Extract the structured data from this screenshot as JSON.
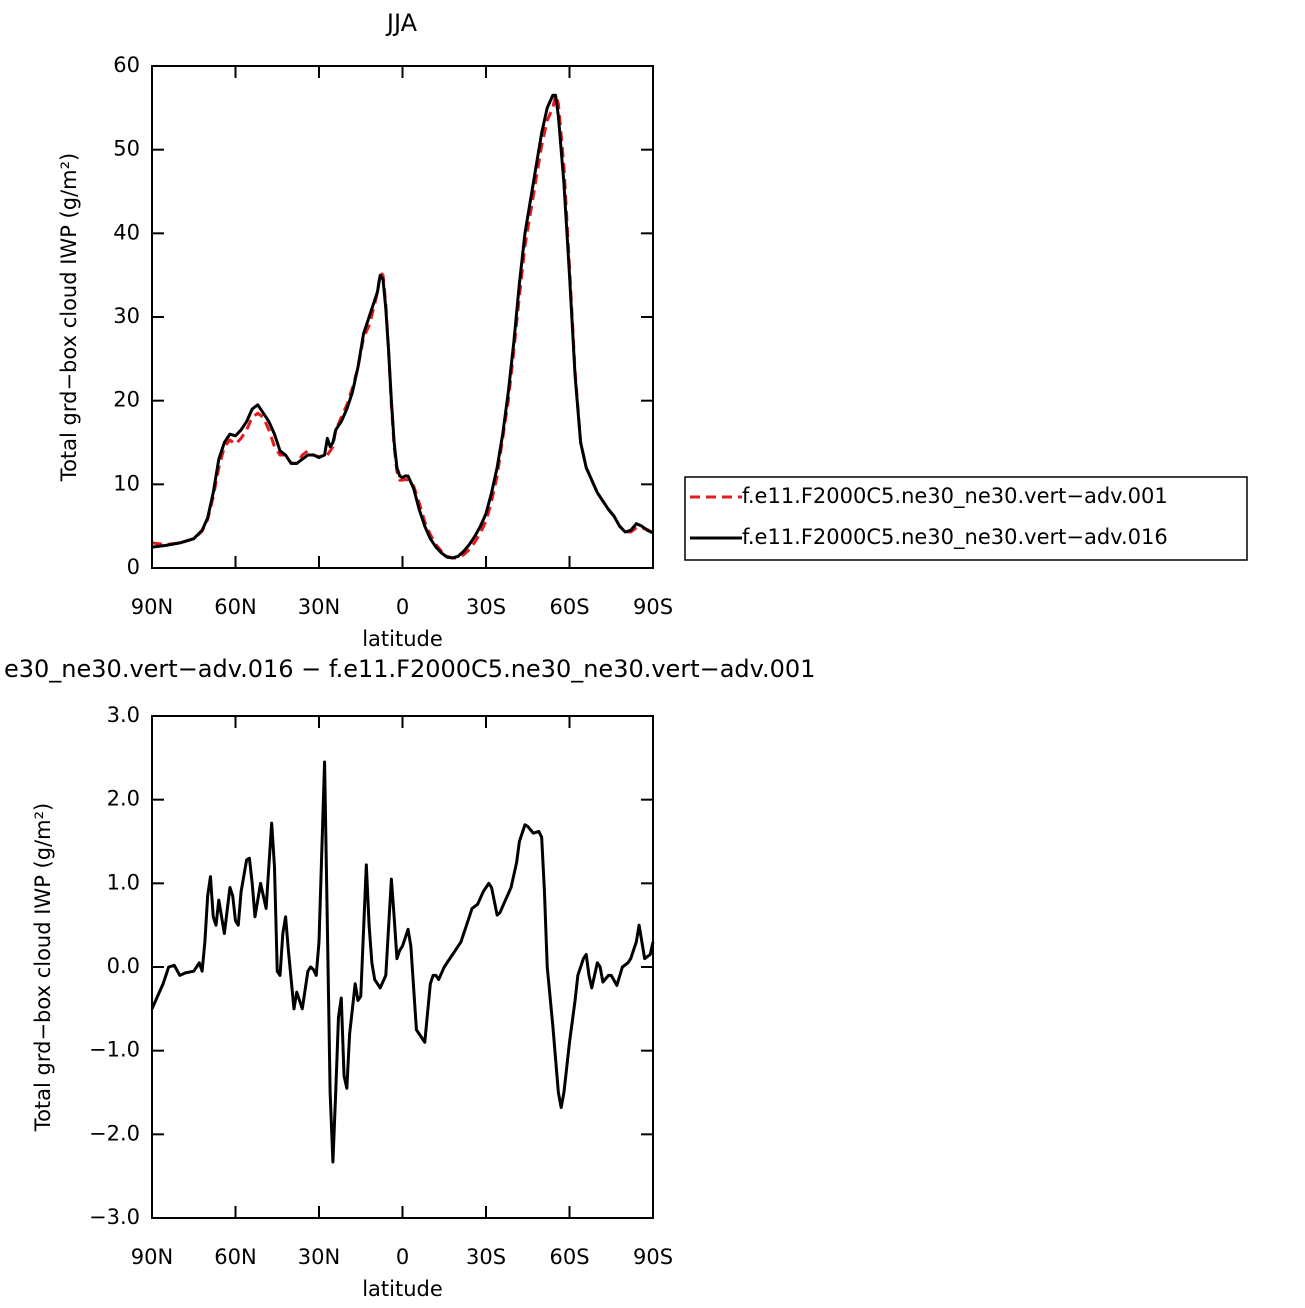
{
  "chart_data": [
    {
      "type": "line",
      "title": "JJA",
      "xlabel": "latitude",
      "ylabel": "Total grd−box cloud IWP (g/m²)",
      "x": [
        90,
        85,
        80,
        75,
        72,
        70,
        68,
        66,
        64,
        62,
        60,
        58,
        56,
        54,
        52,
        50,
        48,
        46,
        44,
        42,
        40,
        38,
        36,
        34,
        32,
        30,
        28,
        27,
        26,
        25,
        24,
        22,
        20,
        18,
        16,
        14,
        12,
        10,
        9,
        8,
        7,
        6,
        5,
        4,
        3,
        2,
        1,
        0,
        -1,
        -2,
        -4,
        -6,
        -8,
        -10,
        -12,
        -14,
        -16,
        -18,
        -20,
        -22,
        -24,
        -26,
        -28,
        -30,
        -32,
        -34,
        -36,
        -38,
        -40,
        -42,
        -44,
        -46,
        -48,
        -50,
        -52,
        -54,
        -55,
        -56,
        -58,
        -60,
        -62,
        -64,
        -66,
        -68,
        -70,
        -72,
        -74,
        -76,
        -78,
        -80,
        -82,
        -84,
        -86,
        -88,
        -90
      ],
      "series": [
        {
          "name": "f.e11.F2000C5.ne30_ne30.vert−adv.001",
          "color": "#e41a1c",
          "style": "dashed",
          "values": [
            3.0,
            2.8,
            3.0,
            3.5,
            4.4,
            5.8,
            8.5,
            12,
            14.5,
            15.3,
            14.8,
            15.5,
            16.5,
            18,
            18.5,
            18,
            16.5,
            14.5,
            13.5,
            13.5,
            12.5,
            12.5,
            13.5,
            14,
            13.5,
            13.3,
            13.5,
            13.5,
            14,
            14.5,
            16.5,
            18,
            19.5,
            21.5,
            24,
            27.5,
            29,
            31.5,
            33,
            35.3,
            35,
            31.5,
            26,
            19.5,
            14.5,
            11.5,
            10.5,
            10.5,
            10.6,
            10.5,
            9.8,
            7.8,
            5.5,
            4,
            2.8,
            2,
            1.4,
            1.2,
            1.2,
            1.6,
            2.2,
            3.1,
            4.2,
            5.6,
            8,
            11,
            15.5,
            20,
            26,
            32.5,
            38.5,
            42.5,
            46.5,
            50.5,
            53.5,
            55,
            56.5,
            55.5,
            48,
            36,
            23.5,
            15,
            12,
            10.5,
            9,
            8,
            7,
            6.2,
            5,
            4.3,
            4.3,
            4.8,
            4.8,
            4.6,
            4.2
          ]
        },
        {
          "name": "f.e11.F2000C5.ne30_ne30.vert−adv.016",
          "color": "#000000",
          "style": "solid",
          "values": [
            2.5,
            2.7,
            3.0,
            3.5,
            4.5,
            6,
            9,
            13,
            15,
            16,
            15.8,
            16.5,
            17.5,
            19,
            19.5,
            18.5,
            17.5,
            16,
            14,
            13.5,
            12.5,
            12.5,
            13,
            13.5,
            13.5,
            13.2,
            13.5,
            15.5,
            14.5,
            15,
            16.5,
            17.5,
            19,
            21,
            24,
            28,
            30,
            32,
            33,
            35,
            34.5,
            31,
            26,
            20,
            15,
            12,
            11,
            10.8,
            11,
            11,
            9.5,
            7,
            5,
            3.5,
            2.5,
            1.8,
            1.3,
            1.2,
            1.4,
            2,
            2.8,
            3.8,
            5,
            6.5,
            9,
            12,
            16,
            21,
            27,
            34,
            40,
            44,
            48,
            52,
            55,
            56.5,
            56.5,
            54,
            46,
            35,
            23,
            15,
            12,
            10.5,
            9,
            8,
            7,
            6.2,
            5,
            4.3,
            4.5,
            5.3,
            5,
            4.5,
            4.2
          ]
        }
      ],
      "xlim": [
        90,
        -90
      ],
      "xticks": [
        {
          "value": 90,
          "label": "90N"
        },
        {
          "value": 60,
          "label": "60N"
        },
        {
          "value": 30,
          "label": "30N"
        },
        0,
        {
          "value": -30,
          "label": "30S"
        },
        {
          "value": -60,
          "label": "60S"
        },
        {
          "value": -90,
          "label": "90S"
        }
      ],
      "ylim": [
        0,
        60
      ],
      "yticks": [
        0,
        10,
        20,
        30,
        40,
        50,
        60
      ],
      "legend": "right"
    },
    {
      "type": "line",
      "title": "e30_ne30.vert−adv.016 − f.e11.F2000C5.ne30_ne30.vert−adv.001",
      "xlabel": "latitude",
      "ylabel": "Total grd−box cloud IWP (g/m²)",
      "x": [
        90,
        88,
        86,
        84,
        82,
        80,
        78,
        75,
        73,
        72,
        71,
        70,
        69,
        68,
        67,
        66,
        64,
        62,
        61,
        60,
        59,
        58,
        56,
        55,
        54,
        53,
        51,
        49,
        47,
        46,
        45,
        44,
        43,
        42,
        41,
        39,
        38,
        36,
        34,
        33,
        32,
        31,
        30,
        28,
        27,
        26,
        25,
        24,
        23,
        22,
        21,
        20,
        19,
        17,
        16,
        15,
        13,
        12,
        11,
        10,
        8,
        6,
        4,
        3,
        2,
        1,
        0,
        -2,
        -3,
        -5,
        -6,
        -7,
        -8,
        -10,
        -11,
        -12,
        -13,
        -15,
        -17,
        -19,
        -21,
        -23,
        -25,
        -27,
        -29,
        -31,
        -32,
        -34,
        -35,
        -37,
        -39,
        -41,
        -42,
        -44,
        -45,
        -47,
        -49,
        -50,
        -51,
        -52,
        -54,
        -56,
        -57,
        -58,
        -60,
        -62,
        -63,
        -65,
        -66,
        -67,
        -68,
        -70,
        -71,
        -72,
        -74,
        -75,
        -77,
        -79,
        -81,
        -82,
        -84,
        -85,
        -86,
        -87,
        -89,
        -90
      ],
      "values": [
        -0.5,
        -0.35,
        -0.2,
        0.0,
        0.02,
        -0.1,
        -0.07,
        -0.05,
        0.05,
        -0.05,
        0.3,
        0.85,
        1.08,
        0.6,
        0.5,
        0.8,
        0.4,
        0.95,
        0.85,
        0.55,
        0.5,
        0.9,
        1.28,
        1.3,
        1.0,
        0.6,
        1.0,
        0.7,
        1.72,
        1.2,
        -0.05,
        -0.1,
        0.4,
        0.6,
        0.2,
        -0.5,
        -0.3,
        -0.5,
        -0.05,
        0.0,
        -0.03,
        -0.1,
        0.3,
        2.45,
        0.5,
        -1.5,
        -2.33,
        -1.5,
        -0.6,
        -0.37,
        -1.3,
        -1.45,
        -0.8,
        -0.2,
        -0.4,
        -0.35,
        1.22,
        0.5,
        0.05,
        -0.15,
        -0.25,
        -0.1,
        1.05,
        0.6,
        0.1,
        0.2,
        0.25,
        0.45,
        0.25,
        -0.75,
        -0.8,
        -0.85,
        -0.9,
        -0.2,
        -0.1,
        -0.1,
        -0.15,
        0.0,
        0.1,
        0.2,
        0.3,
        0.5,
        0.7,
        0.75,
        0.9,
        1.0,
        0.95,
        0.62,
        0.65,
        0.8,
        0.95,
        1.25,
        1.5,
        1.7,
        1.68,
        1.6,
        1.62,
        1.55,
        0.9,
        0.0,
        -0.7,
        -1.5,
        -1.68,
        -1.5,
        -0.9,
        -0.4,
        -0.1,
        0.1,
        0.15,
        -0.1,
        -0.25,
        0.05,
        0.0,
        -0.18,
        -0.1,
        -0.1,
        -0.22,
        0.0,
        0.05,
        0.1,
        0.3,
        0.5,
        0.3,
        0.1,
        0.15,
        0.3
      ],
      "color": "#000000",
      "xlim": [
        90,
        -90
      ],
      "xticks": [
        {
          "value": 90,
          "label": "90N"
        },
        {
          "value": 60,
          "label": "60N"
        },
        {
          "value": 30,
          "label": "30N"
        },
        0,
        {
          "value": -30,
          "label": "30S"
        },
        {
          "value": -60,
          "label": "60S"
        },
        {
          "value": -90,
          "label": "90S"
        }
      ],
      "ylim": [
        -3,
        3
      ],
      "yticks": [
        {
          "value": -3,
          "label": "−3.0"
        },
        {
          "value": -2,
          "label": "−2.0"
        },
        {
          "value": -1,
          "label": "−1.0"
        },
        {
          "value": 0,
          "label": "0.0"
        },
        {
          "value": 1,
          "label": "1.0"
        },
        {
          "value": 2,
          "label": "2.0"
        },
        {
          "value": 3,
          "label": "3.0"
        }
      ]
    }
  ]
}
